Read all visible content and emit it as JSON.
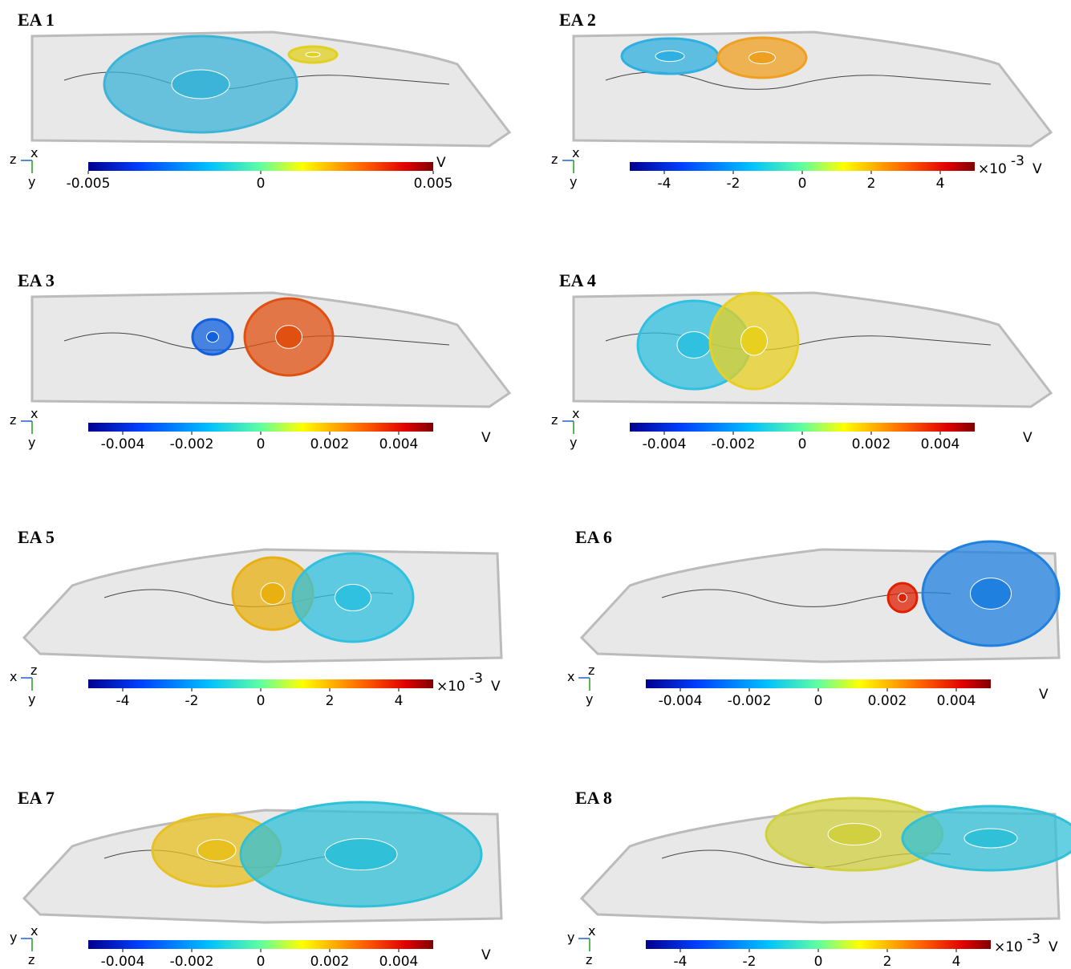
{
  "panels": [
    {
      "title": "EA 1",
      "ticks": [
        "-0.005",
        "0",
        "0.005"
      ],
      "unit": "V",
      "triad": [
        "z",
        "x",
        "y"
      ]
    },
    {
      "title": "EA 2",
      "ticks": [
        "-4",
        "-2",
        "0",
        "2",
        "4"
      ],
      "scale": "×10",
      "exponent": "-3",
      "unit": "V",
      "triad": [
        "z",
        "x",
        "y"
      ]
    },
    {
      "title": "EA 3",
      "ticks": [
        "-0.004",
        "-0.002",
        "0",
        "0.002",
        "0.004"
      ],
      "unit": "V",
      "triad": [
        "z",
        "x",
        "y"
      ]
    },
    {
      "title": "EA 4",
      "ticks": [
        "-0.004",
        "-0.002",
        "0",
        "0.002",
        "0.004"
      ],
      "unit": "V",
      "triad": [
        "z",
        "x",
        "y"
      ]
    },
    {
      "title": "EA 5",
      "ticks": [
        "-4",
        "-2",
        "0",
        "2",
        "4"
      ],
      "scale": "×10",
      "exponent": "-3",
      "unit": "V",
      "triad": [
        "x",
        "z",
        "y"
      ]
    },
    {
      "title": "EA 6",
      "ticks": [
        "-0.004",
        "-0.002",
        "0",
        "0.002",
        "0.004"
      ],
      "unit": "V",
      "triad": [
        "x",
        "z",
        "y"
      ]
    },
    {
      "title": "EA 7",
      "ticks": [
        "-0.004",
        "-0.002",
        "0",
        "0.002",
        "0.004"
      ],
      "unit": "V",
      "triad": [
        "y",
        "x",
        "z"
      ]
    },
    {
      "title": "EA 8",
      "ticks": [
        "-4",
        "-2",
        "0",
        "2",
        "4"
      ],
      "scale": "×10",
      "exponent": "-3",
      "unit": "V",
      "triad": [
        "y",
        "x",
        "z"
      ]
    }
  ]
}
